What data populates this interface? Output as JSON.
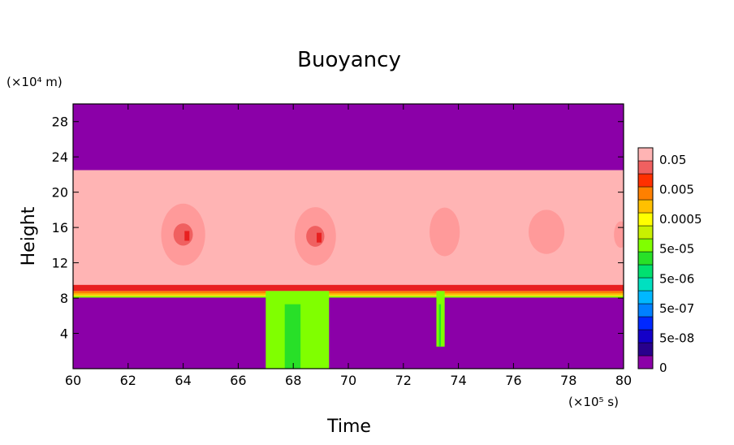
{
  "chart_data": {
    "type": "heatmap",
    "title": "Buoyancy",
    "xlabel": "Time",
    "ylabel": "Height",
    "x_unit": "(×10⁵ s)",
    "y_unit": "(×10⁴ m)",
    "xlim": [
      60,
      80
    ],
    "ylim": [
      0,
      30
    ],
    "x_ticks": [
      60,
      62,
      64,
      66,
      68,
      70,
      72,
      74,
      76,
      78,
      80
    ],
    "y_ticks": [
      4,
      8,
      12,
      16,
      20,
      24,
      28
    ],
    "grid": false,
    "legend": "colorbar-right",
    "colorbar": {
      "scale": "log",
      "levels": [
        {
          "color": "#8b00a8"
        },
        {
          "color": "#28008c"
        },
        {
          "color": "#1400c8"
        },
        {
          "color": "#0028ff"
        },
        {
          "color": "#0080ff"
        },
        {
          "color": "#00b8ff"
        },
        {
          "color": "#00e0c0"
        },
        {
          "color": "#00e070"
        },
        {
          "color": "#28e028"
        },
        {
          "color": "#80ff00"
        },
        {
          "color": "#c8f000"
        },
        {
          "color": "#ffff00"
        },
        {
          "color": "#ffc000"
        },
        {
          "color": "#ff8000"
        },
        {
          "color": "#ff3000"
        },
        {
          "color": "#f06060"
        },
        {
          "color": "#ffb4b4"
        }
      ],
      "labels": [
        "0.05",
        "0.005",
        "0.0005",
        "5e-05",
        "5e-06",
        "5e-07",
        "5e-08",
        "0"
      ]
    },
    "regions": {
      "upper_layer": {
        "color": "#8b00a8",
        "y_range": [
          22.5,
          30
        ]
      },
      "pink_band": {
        "color": "#ffb4b4",
        "y_range": [
          9.5,
          22.5
        ]
      },
      "red_interface": {
        "color": "#e82020",
        "y_range": [
          8.8,
          9.5
        ]
      },
      "lower_layer": {
        "color": "#8b00a8",
        "y_range": [
          0,
          8.8
        ]
      }
    },
    "plumes": [
      {
        "x": 64.0,
        "y": 15.2,
        "width": 1.6,
        "height": 7.0,
        "core": true
      },
      {
        "x": 68.8,
        "y": 15.0,
        "width": 1.5,
        "height": 6.6,
        "core": true
      },
      {
        "x": 73.5,
        "y": 15.5,
        "width": 1.1,
        "height": 5.5,
        "core": false
      },
      {
        "x": 77.2,
        "y": 15.5,
        "width": 1.3,
        "height": 5.0,
        "core": false
      },
      {
        "x": 79.9,
        "y": 15.2,
        "width": 0.5,
        "height": 3.0,
        "core": false
      }
    ],
    "green_intrusions": [
      {
        "x0": 67.0,
        "x1": 69.3,
        "y_bottom": 0,
        "y_top": 8.8
      },
      {
        "x0": 73.2,
        "x1": 73.5,
        "y_bottom": 2.5,
        "y_top": 8.8
      }
    ]
  }
}
